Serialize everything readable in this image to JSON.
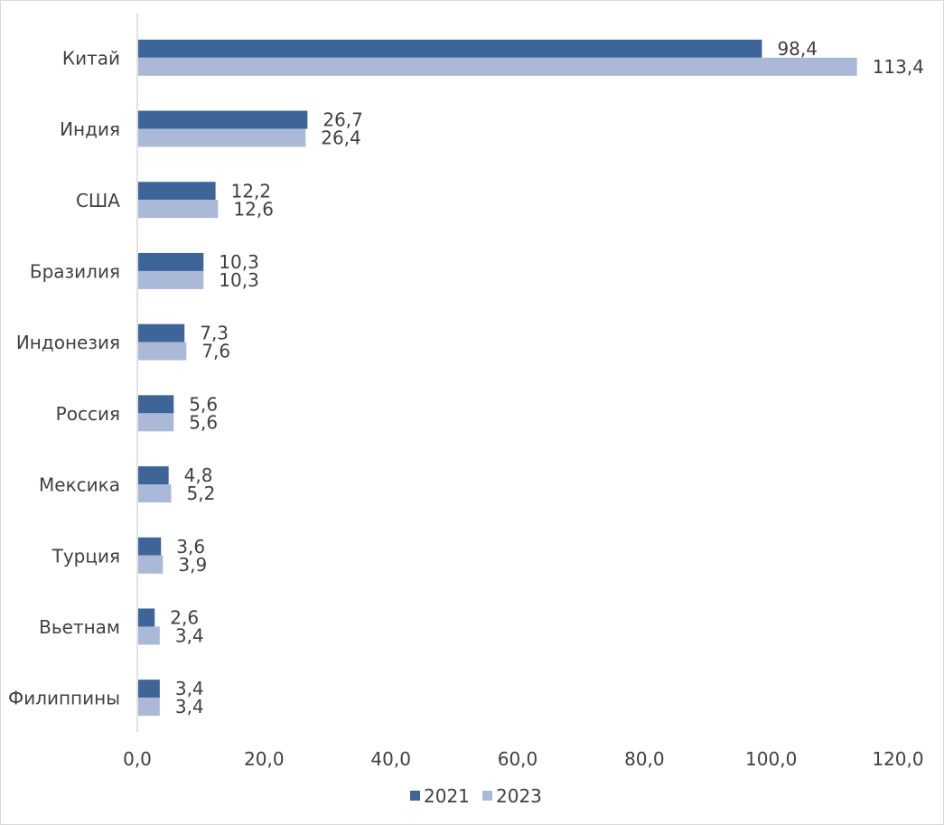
{
  "chart_data": {
    "type": "bar",
    "orientation": "horizontal",
    "title": "",
    "xlabel": "",
    "ylabel": "",
    "categories": [
      "Китай",
      "Индия",
      "США",
      "Бразилия",
      "Индонезия",
      "Россия",
      "Мексика",
      "Турция",
      "Вьетнам",
      "Филиппины"
    ],
    "series": [
      {
        "name": "2021",
        "color": "#3e6598",
        "values": [
          98.4,
          26.7,
          12.2,
          10.3,
          7.3,
          5.6,
          4.8,
          3.6,
          2.6,
          3.4
        ],
        "labels": [
          "98,4",
          "26,7",
          "12,2",
          "10,3",
          "7,3",
          "5,6",
          "4,8",
          "3,6",
          "2,6",
          "3,4"
        ]
      },
      {
        "name": "2023",
        "color": "#abb9d9",
        "values": [
          113.4,
          26.4,
          12.6,
          10.3,
          7.6,
          5.6,
          5.2,
          3.9,
          3.4,
          3.4
        ],
        "labels": [
          "113,4",
          "26,4",
          "12,6",
          "10,3",
          "7,6",
          "5,6",
          "5,2",
          "3,9",
          "3,4",
          "3,4"
        ]
      }
    ],
    "xlim": [
      0,
      120
    ],
    "xticks": [
      0,
      20,
      40,
      60,
      80,
      100,
      120
    ],
    "xtick_labels": [
      "0,0",
      "20,0",
      "40,0",
      "60,0",
      "80,0",
      "100,0",
      "120,0"
    ],
    "grid": false,
    "legend_position": "bottom"
  }
}
